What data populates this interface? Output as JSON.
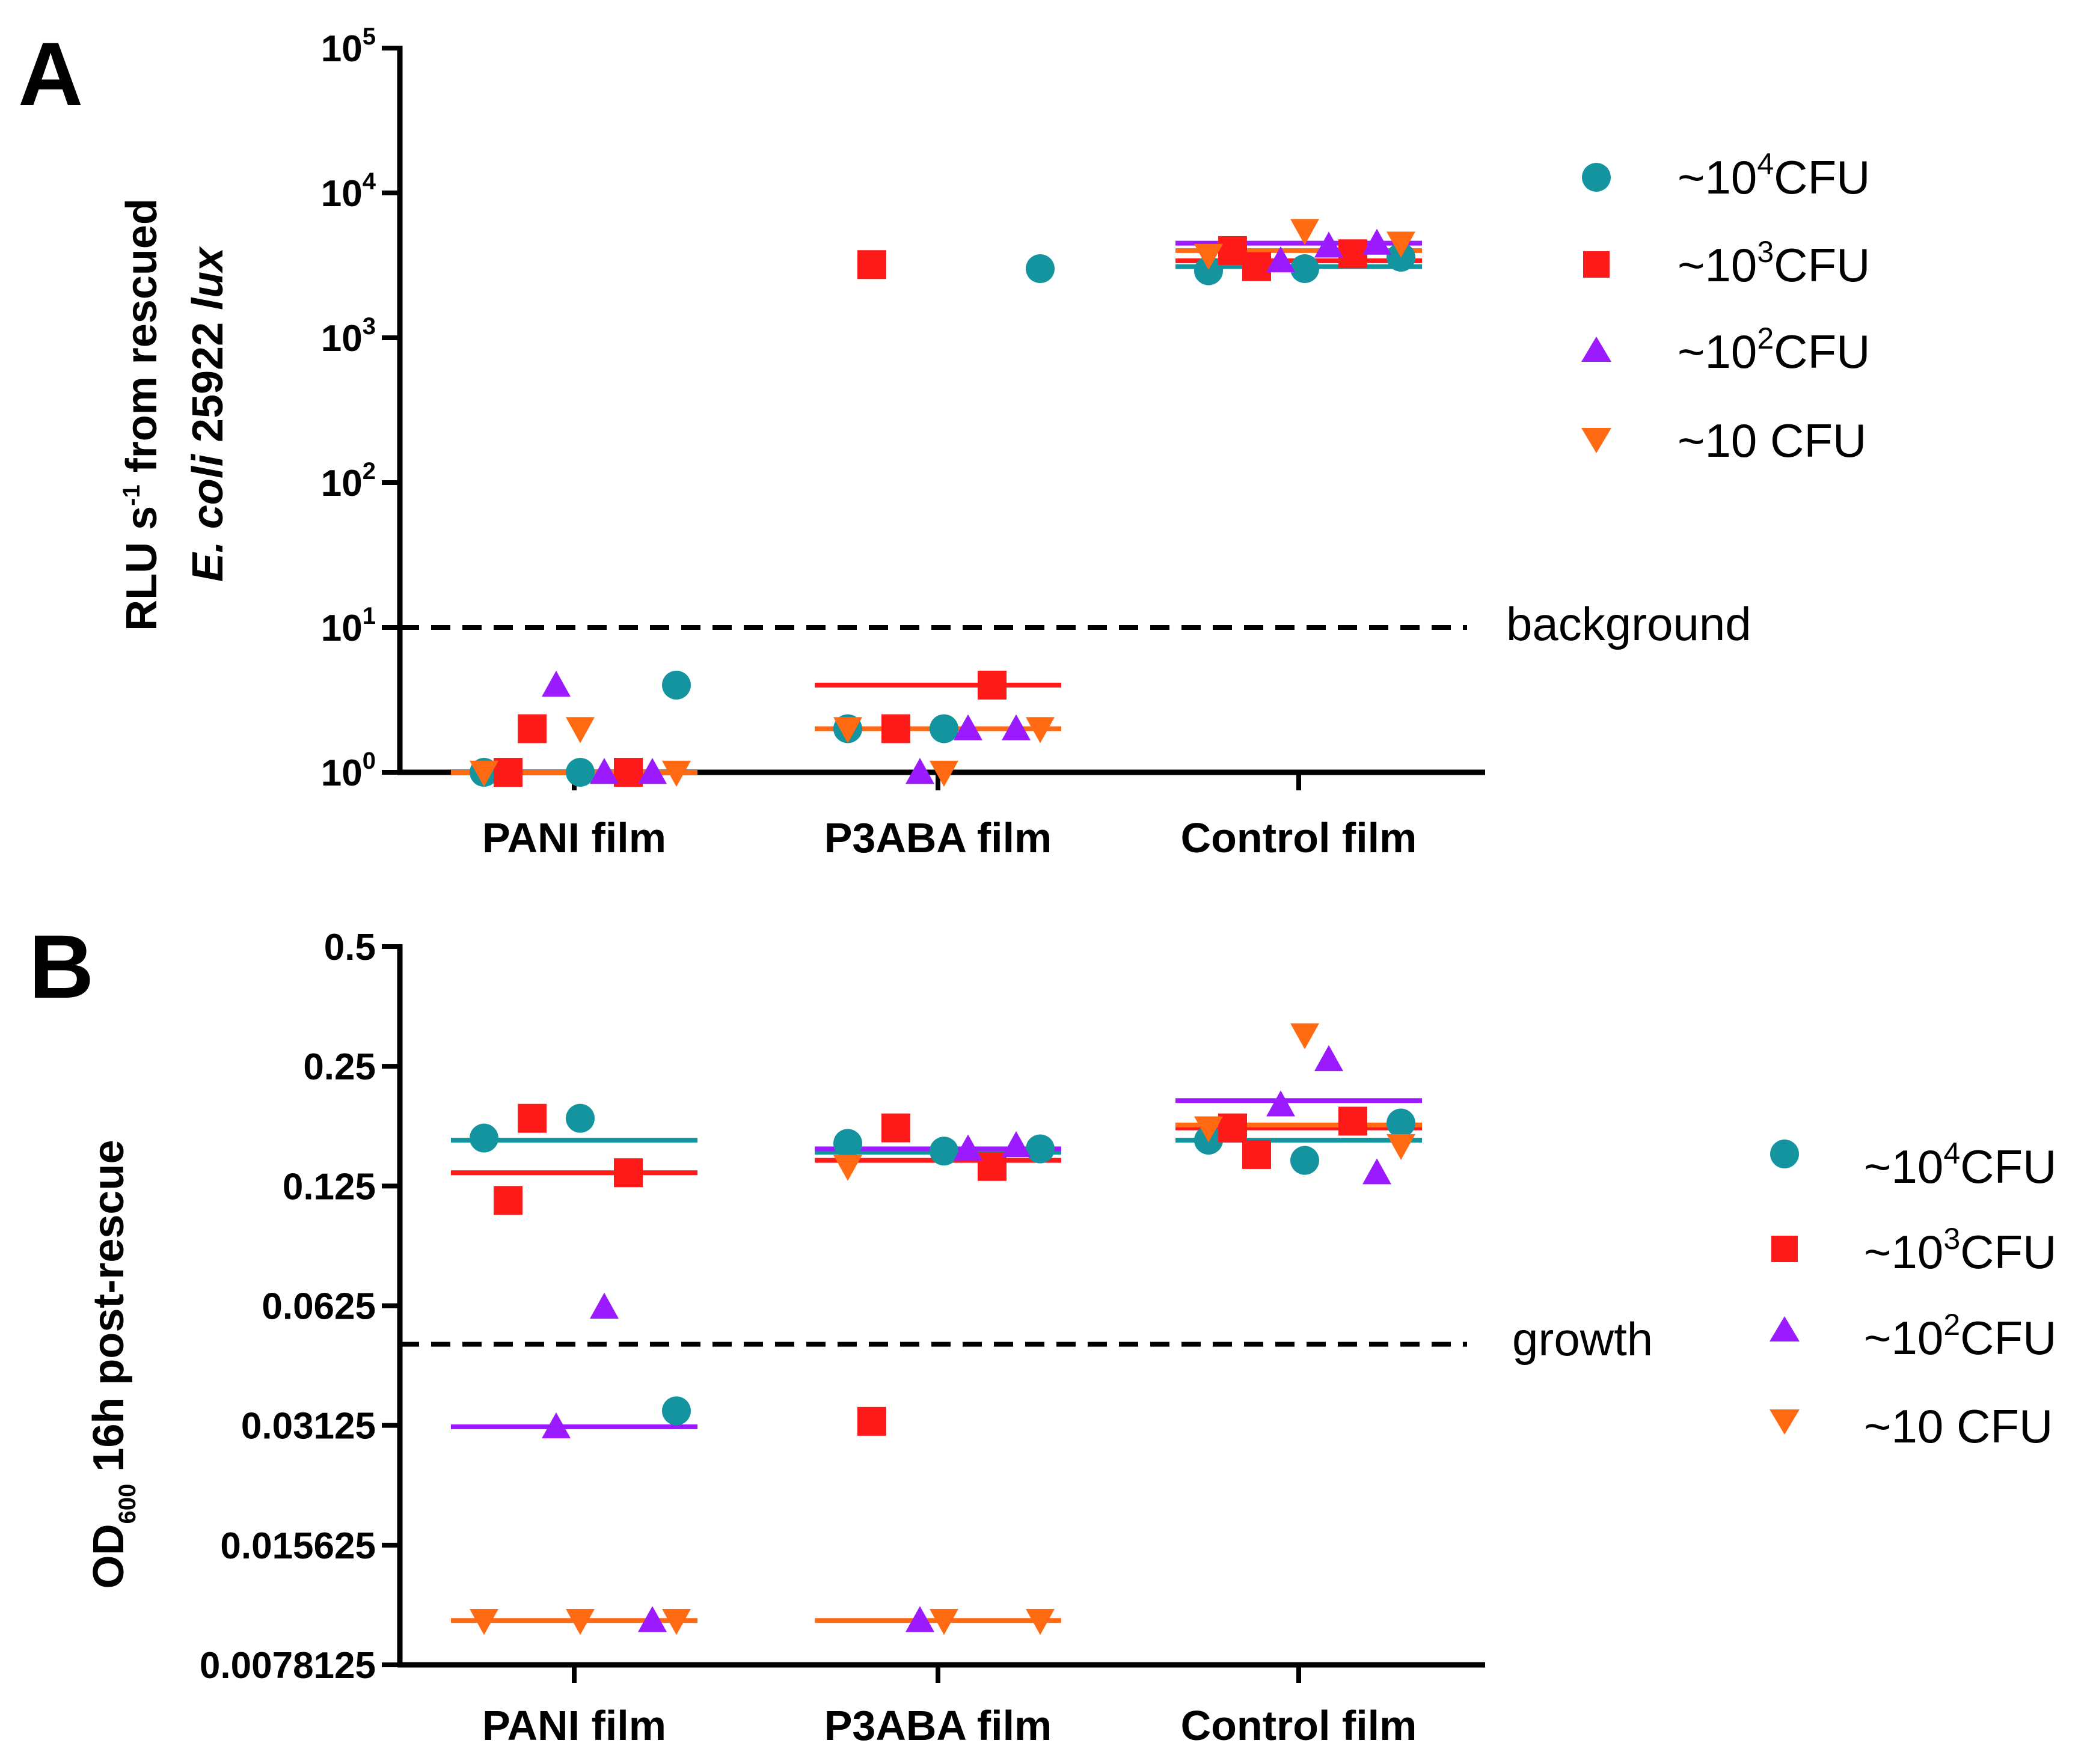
{
  "panels": {
    "a": {
      "letter": "A",
      "ylabel": {
        "line1_pre": "RLU s",
        "line1_sup": "-1",
        "line1_post": " from rescued",
        "line2_italic": "E. coli",
        "line2_mid": " 25922 ",
        "line2_italic2": "lux"
      },
      "y_ticks": [
        {
          "base": "10",
          "exp": "0"
        },
        {
          "base": "10",
          "exp": "1"
        },
        {
          "base": "10",
          "exp": "2"
        },
        {
          "base": "10",
          "exp": "3"
        },
        {
          "base": "10",
          "exp": "4"
        },
        {
          "base": "10",
          "exp": "5"
        }
      ],
      "categories": [
        "PANI film",
        "P3ABA film",
        "Control film"
      ],
      "reference_label": "background"
    },
    "b": {
      "letter": "B",
      "ylabel": {
        "pre": "OD",
        "sub": "600",
        "post": " 16h post-rescue"
      },
      "y_ticks": [
        "0.0078125",
        "0.015625",
        "0.03125",
        "0.0625",
        "0.125",
        "0.25",
        "0.5"
      ],
      "categories": [
        "PANI film",
        "P3ABA film",
        "Control film"
      ],
      "reference_label": "growth"
    }
  },
  "legend": {
    "entries": [
      {
        "pre": "~10",
        "sup": "4",
        "post": "CFU",
        "marker": "circle",
        "color": "#13949f"
      },
      {
        "pre": "~10",
        "sup": "3",
        "post": "CFU",
        "marker": "square",
        "color": "#ff1a1a"
      },
      {
        "pre": "~10",
        "sup": "2",
        "post": "CFU",
        "marker": "triangle-up",
        "color": "#9b1aff"
      },
      {
        "pre": "~10 ",
        "sup": "",
        "post": "CFU",
        "marker": "triangle-down",
        "color": "#ff6a13"
      }
    ]
  },
  "chart_data": [
    {
      "type": "scatter",
      "panel": "A",
      "y_scale": "log10",
      "ylim": [
        1,
        100000
      ],
      "categories": [
        "PANI film",
        "P3ABA film",
        "Control film"
      ],
      "reference_line": {
        "y": 10,
        "style": "dashed"
      },
      "grid": false,
      "legend_position": "right",
      "series": [
        {
          "name": "~10^4CFU",
          "marker": "circle",
          "color": "#13949f",
          "points": [
            [
              0,
              1
            ],
            [
              0,
              1
            ],
            [
              0,
              4
            ],
            [
              1,
              2
            ],
            [
              1,
              2
            ],
            [
              1,
              3000
            ],
            [
              2,
              2900
            ],
            [
              2,
              3000
            ],
            [
              2,
              3600
            ]
          ],
          "means": [
            1,
            2,
            3100
          ]
        },
        {
          "name": "~10^3CFU",
          "marker": "square",
          "color": "#ff1a1a",
          "points": [
            [
              0,
              2
            ],
            [
              0,
              1
            ],
            [
              0,
              1
            ],
            [
              1,
              2
            ],
            [
              1,
              4
            ],
            [
              1,
              3200
            ],
            [
              2,
              3100
            ],
            [
              2,
              3800
            ],
            [
              2,
              4000
            ]
          ],
          "means": [
            1,
            4,
            3400
          ]
        },
        {
          "name": "~10^2CFU",
          "marker": "triangle-up",
          "color": "#9b1aff",
          "points": [
            [
              0,
              1
            ],
            [
              0,
              4
            ],
            [
              0,
              1
            ],
            [
              1,
              2
            ],
            [
              1,
              1
            ],
            [
              1,
              2
            ],
            [
              2,
              4300
            ],
            [
              2,
              3400
            ],
            [
              2,
              4500
            ]
          ],
          "means": [
            1,
            2,
            4500
          ]
        },
        {
          "name": "~10 CFU",
          "marker": "triangle-down",
          "color": "#ff6a13",
          "points": [
            [
              0,
              1
            ],
            [
              0,
              2
            ],
            [
              0,
              1
            ],
            [
              1,
              2
            ],
            [
              1,
              1
            ],
            [
              1,
              2
            ],
            [
              2,
              3700
            ],
            [
              2,
              5500
            ],
            [
              2,
              4500
            ]
          ],
          "means": [
            1,
            2,
            4000
          ]
        }
      ]
    },
    {
      "type": "scatter",
      "panel": "B",
      "y_scale": "log2",
      "ylim": [
        0.0078125,
        0.5
      ],
      "categories": [
        "PANI film",
        "P3ABA film",
        "Control film"
      ],
      "reference_line": {
        "y": 0.05,
        "style": "dashed"
      },
      "grid": false,
      "legend_position": "right",
      "series": [
        {
          "name": "~10^4CFU",
          "marker": "circle",
          "color": "#13949f",
          "points": [
            [
              0,
              0.165
            ],
            [
              0,
              0.185
            ],
            [
              0,
              0.034
            ],
            [
              1,
              0.16
            ],
            [
              1,
              0.153
            ],
            [
              1,
              0.155
            ],
            [
              2,
              0.163
            ],
            [
              2,
              0.145
            ],
            [
              2,
              0.18
            ]
          ],
          "means": [
            0.163,
            0.152,
            0.163
          ]
        },
        {
          "name": "~10^3CFU",
          "marker": "square",
          "color": "#ff1a1a",
          "points": [
            [
              0,
              0.185
            ],
            [
              0,
              0.135
            ],
            [
              0,
              0.115
            ],
            [
              1,
              0.175
            ],
            [
              1,
              0.14
            ],
            [
              1,
              0.032
            ],
            [
              2,
              0.15
            ],
            [
              2,
              0.182
            ],
            [
              2,
              0.175
            ]
          ],
          "means": [
            0.135,
            0.145,
            0.175
          ]
        },
        {
          "name": "~10^2CFU",
          "marker": "triangle-up",
          "color": "#9b1aff",
          "points": [
            [
              0,
              0.062
            ],
            [
              0,
              0.031
            ],
            [
              0,
              0.0101
            ],
            [
              1,
              0.155
            ],
            [
              1,
              0.0101
            ],
            [
              1,
              0.158
            ],
            [
              2,
              0.26
            ],
            [
              2,
              0.2
            ],
            [
              2,
              0.135
            ]
          ],
          "means": [
            0.031,
            0.155,
            0.205
          ]
        },
        {
          "name": "~10 CFU",
          "marker": "triangle-down",
          "color": "#ff6a13",
          "points": [
            [
              0,
              0.0101
            ],
            [
              0,
              0.0101
            ],
            [
              0,
              0.0101
            ],
            [
              1,
              0.14
            ],
            [
              1,
              0.0101
            ],
            [
              1,
              0.0101
            ],
            [
              2,
              0.175
            ],
            [
              2,
              0.3
            ],
            [
              2,
              0.158
            ]
          ],
          "means": [
            0.0101,
            0.0101,
            0.178
          ]
        }
      ]
    }
  ]
}
